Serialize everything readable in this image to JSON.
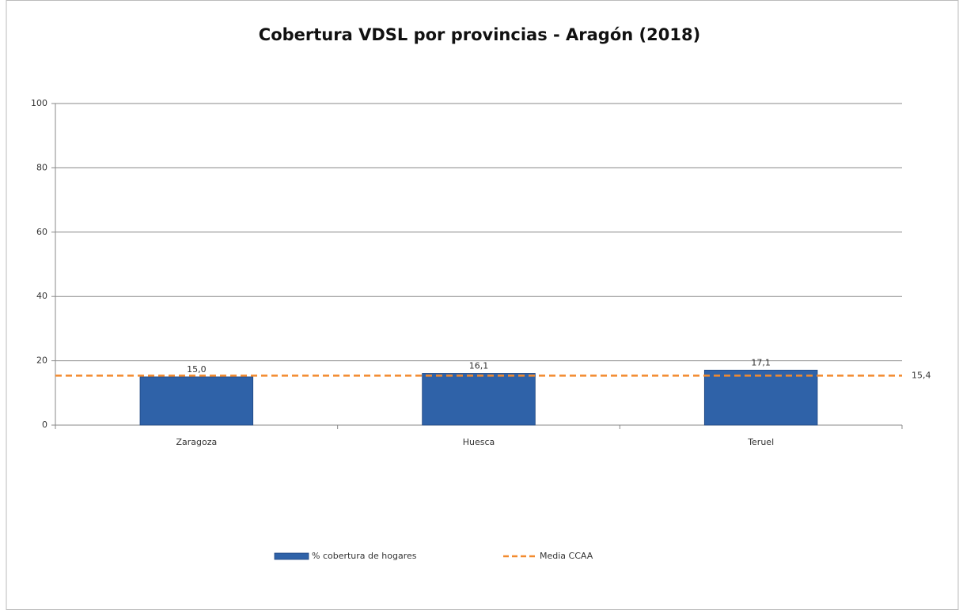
{
  "chart_data": {
    "type": "bar",
    "title": "Cobertura VDSL por provincias - Aragón (2018)",
    "categories": [
      "Zaragoza",
      "Huesca",
      "Teruel"
    ],
    "series": [
      {
        "name": "% cobertura de hogares",
        "color": "#2f62a8",
        "values": [
          15.0,
          16.1,
          17.1
        ],
        "value_labels": [
          "15,0",
          "16,1",
          "17,1"
        ]
      }
    ],
    "reference_line": {
      "name": "Media CCAA",
      "color": "#f28a2e",
      "value": 15.4,
      "value_label": "15,4",
      "dashed": true
    },
    "ylim": [
      0,
      100
    ],
    "yticks": [
      0,
      20,
      40,
      60,
      80,
      100
    ],
    "grid": true,
    "legend": "bottom"
  }
}
